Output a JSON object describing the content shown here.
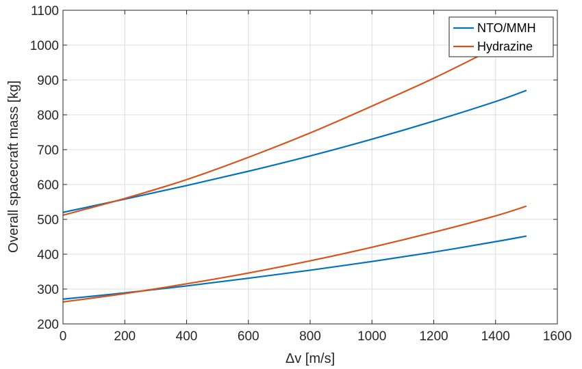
{
  "chart_data": {
    "type": "line",
    "xlabel": "Δv [m/s]",
    "ylabel": "Overall spacecraft mass [kg]",
    "xlim": [
      0,
      1600
    ],
    "ylim": [
      200,
      1100
    ],
    "xticks": [
      0,
      200,
      400,
      600,
      800,
      1000,
      1200,
      1400,
      1600
    ],
    "yticks": [
      200,
      300,
      400,
      500,
      600,
      700,
      800,
      900,
      1000,
      1100
    ],
    "grid": true,
    "legend_position": "top-right",
    "colors": {
      "NTO/MMH": "#0072BD",
      "Hydrazine": "#D95319"
    },
    "legend": [
      {
        "name": "NTO/MMH",
        "color": "#0072BD"
      },
      {
        "name": "Hydrazine",
        "color": "#D95319"
      }
    ],
    "series": [
      {
        "name": "NTO/MMH",
        "x": [
          0,
          200,
          400,
          600,
          800,
          1000,
          1200,
          1400,
          1500
        ],
        "values": [
          520,
          558,
          597,
          638,
          682,
          730,
          782,
          838,
          870
        ]
      },
      {
        "name": "Hydrazine",
        "x": [
          0,
          200,
          400,
          600,
          800,
          1000,
          1200,
          1400,
          1500
        ],
        "values": [
          512,
          560,
          614,
          678,
          748,
          825,
          905,
          993,
          1040
        ]
      },
      {
        "name": "NTO/MMH",
        "x": [
          0,
          200,
          400,
          600,
          800,
          1000,
          1200,
          1400,
          1500
        ],
        "values": [
          271,
          289,
          309,
          331,
          354,
          379,
          406,
          436,
          452
        ]
      },
      {
        "name": "Hydrazine",
        "x": [
          0,
          200,
          400,
          600,
          800,
          1000,
          1200,
          1400,
          1500
        ],
        "values": [
          263,
          287,
          315,
          346,
          381,
          420,
          463,
          510,
          538
        ]
      }
    ]
  }
}
